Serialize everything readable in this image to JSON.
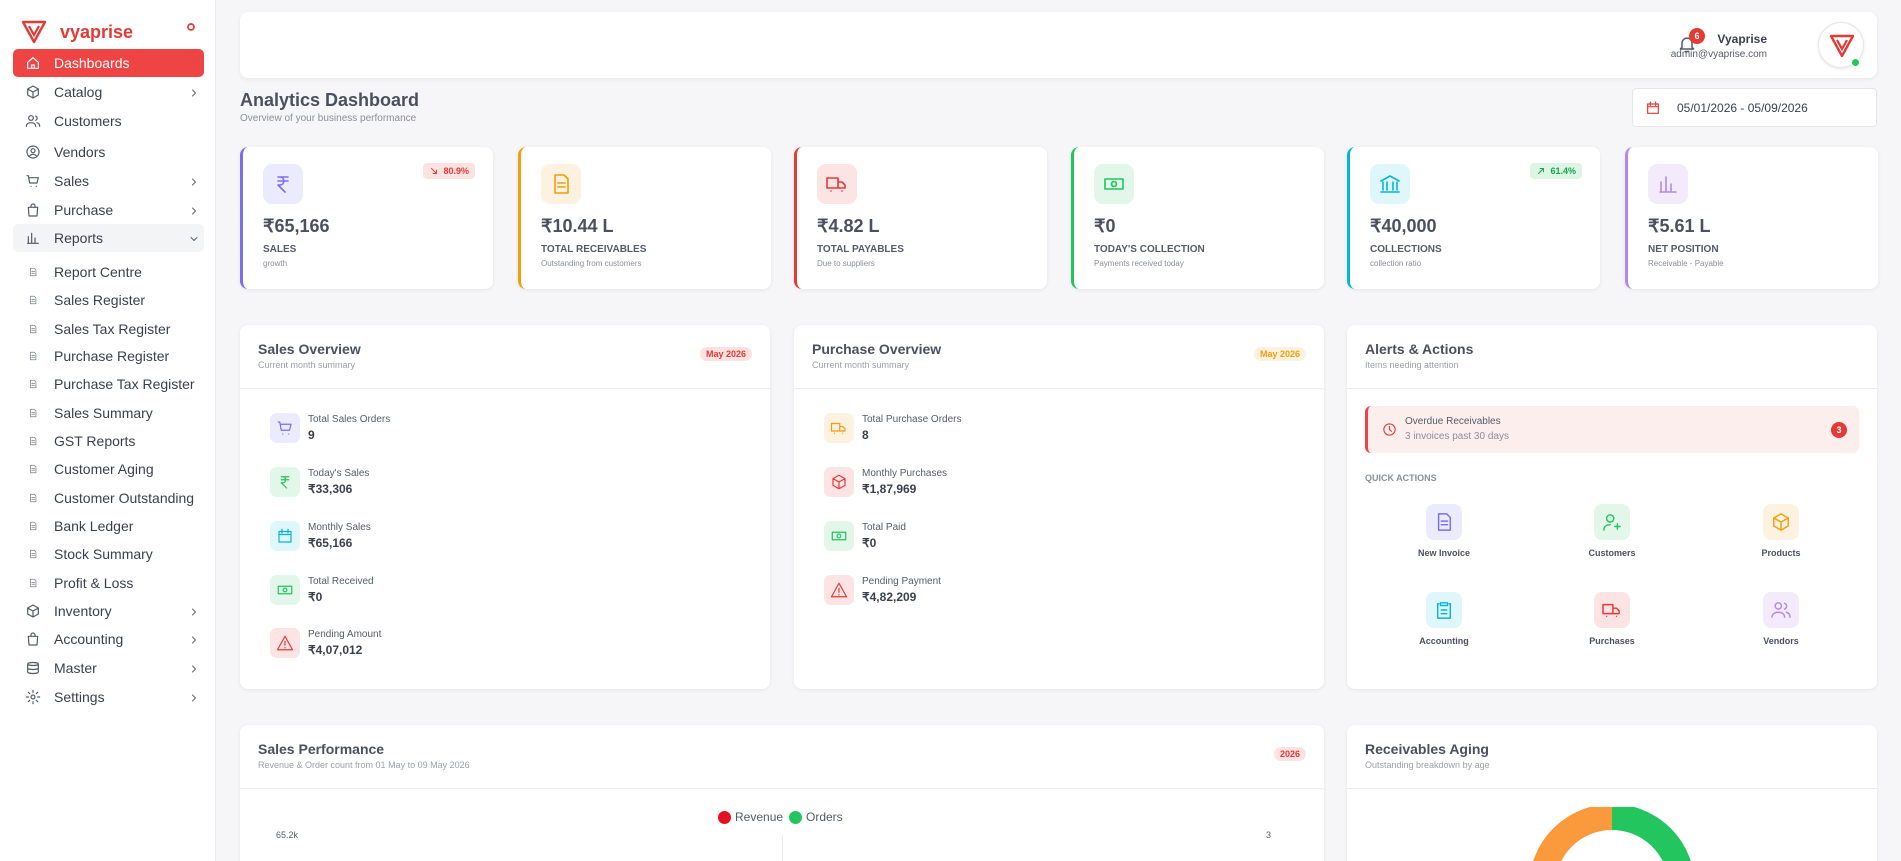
{
  "sidebar": {
    "brand": "vyaprise",
    "nav": [
      {
        "label": "Dashboards"
      },
      {
        "label": "Catalog"
      },
      {
        "label": "Customers"
      },
      {
        "label": "Vendors"
      },
      {
        "label": "Sales"
      },
      {
        "label": "Purchase"
      },
      {
        "label": "Reports",
        "children": [
          "Report Centre",
          "Sales Register",
          "Sales Tax Register",
          "Purchase Register",
          "Purchase Tax Register",
          "Sales Summary",
          "GST Reports",
          "Customer Aging",
          "Customer Outstanding",
          "Bank Ledger",
          "Stock Summary",
          "Profit & Loss"
        ]
      },
      {
        "label": "Inventory"
      },
      {
        "label": "Accounting"
      },
      {
        "label": "Master"
      },
      {
        "label": "Settings"
      }
    ]
  },
  "header": {
    "notifications": 6,
    "user_name": "Vyaprise",
    "user_email": "admin@vyaprise.com"
  },
  "page": {
    "title": "Analytics Dashboard",
    "subtitle": "Overview of your business performance",
    "date_range": "05/01/2026 - 05/09/2026"
  },
  "kpis": [
    {
      "value": "₹65,166",
      "label": "SALES",
      "sub": "growth",
      "badge": "80.9%"
    },
    {
      "value": "₹10.44 L",
      "label": "TOTAL RECEIVABLES",
      "sub": "Outstanding from customers"
    },
    {
      "value": "₹4.82 L",
      "label": "TOTAL PAYABLES",
      "sub": "Due to suppliers"
    },
    {
      "value": "₹0",
      "label": "TODAY'S COLLECTION",
      "sub": "Payments received today"
    },
    {
      "value": "₹40,000",
      "label": "COLLECTIONS",
      "sub": "collection ratio",
      "badge": "61.4%"
    },
    {
      "value": "₹5.61 L",
      "label": "NET POSITION",
      "sub": "Receivable - Payable"
    }
  ],
  "sales_overview": {
    "title": "Sales Overview",
    "subtitle": "Current month summary",
    "badge": "May 2026",
    "items": [
      {
        "label": "Total Sales Orders",
        "value": "9"
      },
      {
        "label": "Today's Sales",
        "value": "₹33,306"
      },
      {
        "label": "Monthly Sales",
        "value": "₹65,166"
      },
      {
        "label": "Total Received",
        "value": "₹0"
      },
      {
        "label": "Pending Amount",
        "value": "₹4,07,012"
      }
    ]
  },
  "purchase_overview": {
    "title": "Purchase Overview",
    "subtitle": "Current month summary",
    "badge": "May 2026",
    "items": [
      {
        "label": "Total Purchase Orders",
        "value": "8"
      },
      {
        "label": "Monthly Purchases",
        "value": "₹1,87,969"
      },
      {
        "label": "Total Paid",
        "value": "₹0"
      },
      {
        "label": "Pending Payment",
        "value": "₹4,82,209"
      }
    ]
  },
  "alerts": {
    "title": "Alerts & Actions",
    "subtitle": "Items needing attention",
    "alert": {
      "title": "Overdue Receivables",
      "text": "3 invoices past 30 days",
      "count": 3
    },
    "quick_actions_label": "QUICK ACTIONS",
    "quick_actions": [
      "New Invoice",
      "Customers",
      "Products",
      "Accounting",
      "Purchases",
      "Vendors"
    ]
  },
  "sales_performance": {
    "title": "Sales Performance",
    "subtitle": "Revenue & Order count from 01 May to 09 May 2026",
    "badge": "2026",
    "legend": [
      "Revenue",
      "Orders"
    ],
    "y_top_label": "65.2k",
    "y2_top_label": "3"
  },
  "receivables_aging": {
    "title": "Receivables Aging",
    "subtitle": "Outstanding breakdown by age"
  }
}
